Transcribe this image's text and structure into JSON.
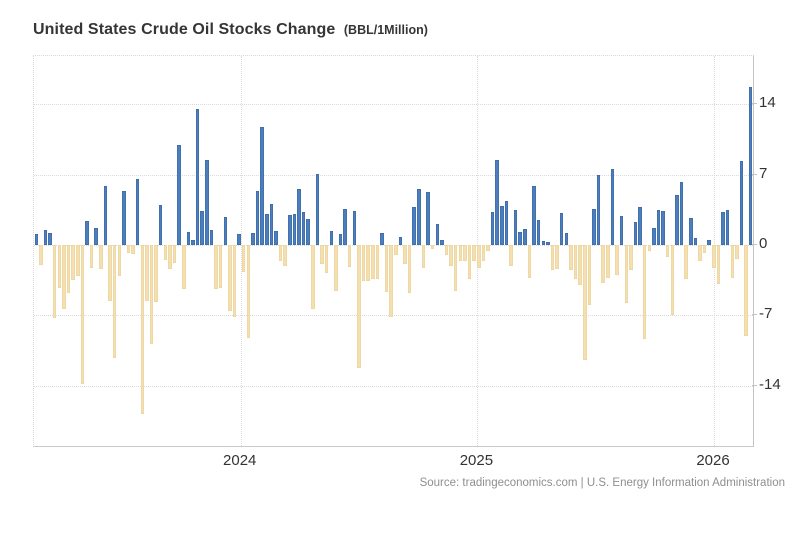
{
  "header": {
    "title": "United States Crude Oil Stocks Change",
    "subtitle": "(BBL/1Million)"
  },
  "footer": {
    "source": "Source: tradingeconomics.com | U.S. Energy Information Administration"
  },
  "chart_data": {
    "type": "bar",
    "title": "United States Crude Oil Stocks Change (BBL/1Million)",
    "ylabel": "",
    "xlabel": "",
    "ylim": [
      -20,
      18.8
    ],
    "y_ticks": [
      14,
      7,
      0,
      "-7",
      "-14"
    ],
    "y_tick_values": [
      14,
      7,
      0,
      -7,
      -14
    ],
    "x_ticks": [
      "2024",
      "2025",
      "2026"
    ],
    "x_tick_positions_pct": [
      28.75,
      61.67,
      94.58
    ],
    "grid": "dotted",
    "legend": "none",
    "colors": {
      "positive_bar": "#4c7ebd",
      "negative_bar": "#f5dfb1",
      "grid": "#dadada",
      "axis": "#c4c4c4",
      "tick_text": "#333333",
      "title_text": "#353535",
      "source_text": "#8f8f8f"
    },
    "values": [
      1.1,
      -2.0,
      1.5,
      1.2,
      -7.3,
      -4.3,
      -6.4,
      -4.8,
      -3.5,
      -3.1,
      -13.8,
      2.4,
      -2.3,
      1.7,
      -2.4,
      5.9,
      -5.6,
      -11.2,
      -3.1,
      5.4,
      -0.8,
      -0.9,
      6.6,
      -16.8,
      -5.6,
      -9.9,
      -5.7,
      4.0,
      -1.5,
      -2.4,
      -1.8,
      9.9,
      -4.4,
      1.3,
      0.5,
      13.5,
      3.4,
      8.5,
      1.5,
      -4.4,
      -4.3,
      2.8,
      -6.6,
      -7.2,
      1.1,
      -2.7,
      -9.3,
      1.2,
      5.4,
      11.7,
      3.1,
      4.1,
      1.4,
      -1.6,
      -2.1,
      3.0,
      3.1,
      5.6,
      3.3,
      2.6,
      -6.4,
      7.1,
      -1.9,
      -2.8,
      1.4,
      -4.6,
      1.1,
      3.6,
      -2.2,
      3.4,
      -12.2,
      -3.6,
      -3.6,
      -3.4,
      -3.4,
      1.2,
      -4.7,
      -7.2,
      -1.0,
      0.8,
      -1.9,
      -4.8,
      3.8,
      5.6,
      -2.3,
      5.3,
      -0.4,
      2.1,
      0.5,
      -1.0,
      -2.1,
      -4.6,
      -1.6,
      -1.6,
      -3.4,
      -1.6,
      -2.3,
      -1.6,
      -0.6,
      3.3,
      8.5,
      3.9,
      4.4,
      -2.1,
      3.5,
      1.3,
      1.6,
      -3.3,
      5.9,
      2.5,
      0.4,
      0.3,
      -2.5,
      -2.4,
      3.2,
      1.2,
      -2.5,
      -3.4,
      -4.0,
      -11.4,
      -6.0,
      3.6,
      7.0,
      -3.8,
      -3.3,
      7.6,
      -3.0,
      2.9,
      -5.8,
      -2.5,
      2.3,
      3.8,
      -9.4,
      -0.6,
      1.7,
      3.5,
      3.4,
      -1.2,
      -7.0,
      5.0,
      6.3,
      -3.4,
      2.7,
      0.7,
      -1.6,
      -0.8,
      0.5,
      -2.3,
      -3.9,
      3.3,
      3.5,
      -3.3,
      -1.4,
      8.4,
      -9.1,
      15.7
    ]
  }
}
